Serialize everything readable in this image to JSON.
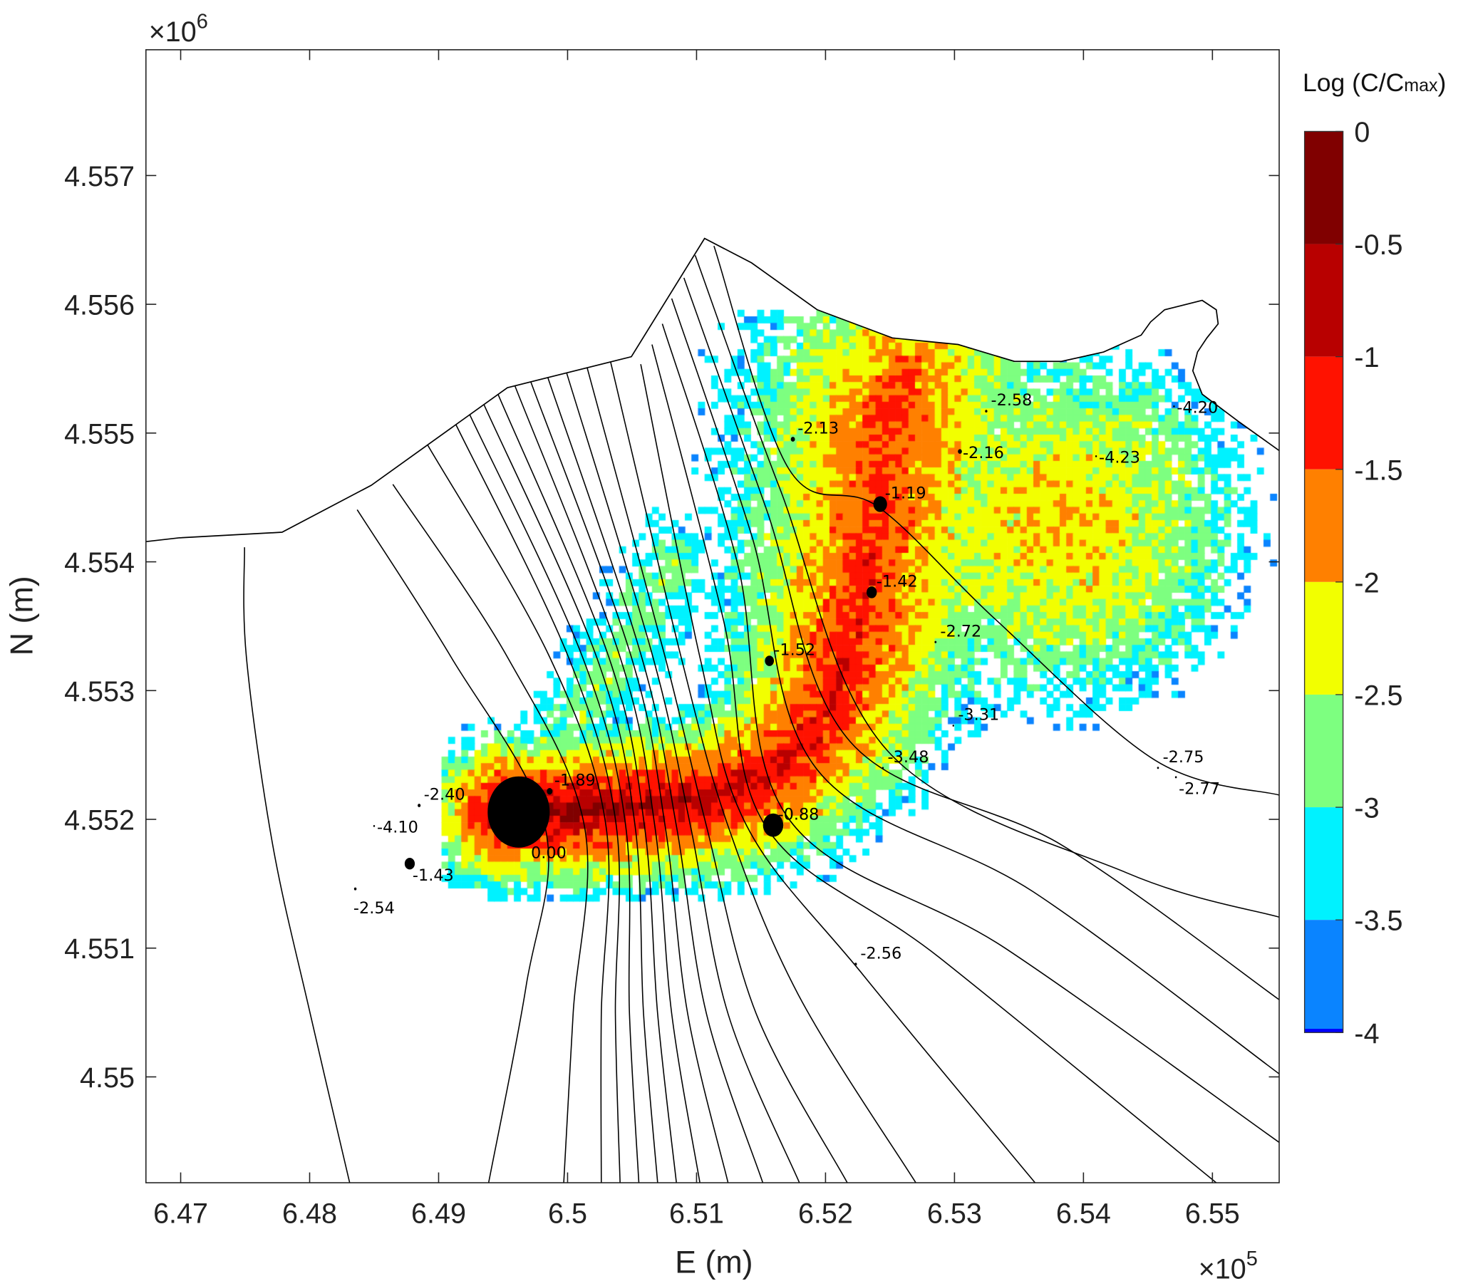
{
  "chart_data": {
    "type": "heatmap",
    "title": "",
    "xlabel": "E (m)",
    "ylabel": "N (m)",
    "x_exponent": "×10",
    "x_exponent_power": "5",
    "y_exponent": "×10",
    "y_exponent_power": "6",
    "xlim": [
      646730,
      655520
    ],
    "ylim": [
      4549180,
      4557980
    ],
    "x_ticks": [
      {
        "value": 647000,
        "label": "6.47"
      },
      {
        "value": 648000,
        "label": "6.48"
      },
      {
        "value": 649000,
        "label": "6.49"
      },
      {
        "value": 650000,
        "label": "6.5"
      },
      {
        "value": 651000,
        "label": "6.51"
      },
      {
        "value": 652000,
        "label": "6.52"
      },
      {
        "value": 653000,
        "label": "6.53"
      },
      {
        "value": 654000,
        "label": "6.54"
      },
      {
        "value": 655000,
        "label": "6.55"
      }
    ],
    "y_ticks": [
      {
        "value": 4557000,
        "label": "4.557"
      },
      {
        "value": 4556000,
        "label": "4.556"
      },
      {
        "value": 4555000,
        "label": "4.555"
      },
      {
        "value": 4554000,
        "label": "4.554"
      },
      {
        "value": 4553000,
        "label": "4.553"
      },
      {
        "value": 4552000,
        "label": "4.552"
      },
      {
        "value": 4551000,
        "label": "4.551"
      },
      {
        "value": 4550000,
        "label": "4.55"
      }
    ],
    "grid": false,
    "colorbar": {
      "title": "Log (C/C",
      "title_sub": "max",
      "title_end": ")",
      "range": [
        -4,
        0
      ],
      "ticks": [
        {
          "value": 0,
          "label": "0"
        },
        {
          "value": -0.5,
          "label": "-0.5"
        },
        {
          "value": -1,
          "label": "-1"
        },
        {
          "value": -1.5,
          "label": "-1.5"
        },
        {
          "value": -2,
          "label": "-2"
        },
        {
          "value": -2.5,
          "label": "-2.5"
        },
        {
          "value": -3,
          "label": "-3"
        },
        {
          "value": -3.5,
          "label": "-3.5"
        },
        {
          "value": -4,
          "label": "-4"
        }
      ],
      "bands": [
        {
          "from": 0,
          "to": -0.5,
          "color": "#800000"
        },
        {
          "from": -0.5,
          "to": -1,
          "color": "#b80000"
        },
        {
          "from": -1,
          "to": -1.5,
          "color": "#ff1200"
        },
        {
          "from": -1.5,
          "to": -2,
          "color": "#ff8000"
        },
        {
          "from": -2,
          "to": -2.5,
          "color": "#f2ff00"
        },
        {
          "from": -2.5,
          "to": -3,
          "color": "#7dff80"
        },
        {
          "from": -3,
          "to": -3.5,
          "color": "#00f2ff"
        },
        {
          "from": -3.5,
          "to": -4,
          "color": "#0a84ff"
        }
      ]
    },
    "samples": [
      {
        "E": 649621,
        "N": 4552057,
        "value": 0.0,
        "label": "0.00",
        "label_pos": "below-wide"
      },
      {
        "E": 649861,
        "N": 4552218,
        "value": -1.89,
        "label": "-1.89",
        "label_pos": "above-right"
      },
      {
        "E": 648849,
        "N": 4552108,
        "value": -2.4,
        "label": "-2.40",
        "label_pos": "above-right"
      },
      {
        "E": 648500,
        "N": 4551948,
        "value": -4.1,
        "label": "-4.10",
        "label_pos": "right"
      },
      {
        "E": 648776,
        "N": 4551656,
        "value": -1.43,
        "label": "-1.43",
        "label_pos": "below-right"
      },
      {
        "E": 648354,
        "N": 4551460,
        "value": -2.54,
        "label": "-2.54",
        "label_pos": "below"
      },
      {
        "E": 651594,
        "N": 4551955,
        "value": -0.88,
        "label": "-0.88",
        "label_pos": "above-right"
      },
      {
        "E": 651565,
        "N": 4553231,
        "value": -1.52,
        "label": "-1.52",
        "label_pos": "above-right"
      },
      {
        "E": 652358,
        "N": 4553763,
        "value": -1.42,
        "label": "-1.42",
        "label_pos": "above-right"
      },
      {
        "E": 652424,
        "N": 4554448,
        "value": -1.19,
        "label": "-1.19",
        "label_pos": "above-right"
      },
      {
        "E": 651747,
        "N": 4554952,
        "value": -2.13,
        "label": "-2.13",
        "label_pos": "above-right"
      },
      {
        "E": 653246,
        "N": 4555170,
        "value": -2.58,
        "label": "-2.58",
        "label_pos": "above-right"
      },
      {
        "E": 653042,
        "N": 4554857,
        "value": -2.16,
        "label": "-2.16",
        "label_pos": "right"
      },
      {
        "E": 654098,
        "N": 4554820,
        "value": -4.23,
        "label": "-4.23",
        "label_pos": "right"
      },
      {
        "E": 654702,
        "N": 4555207,
        "value": -4.2,
        "label": "-4.20",
        "label_pos": "right"
      },
      {
        "E": 652853,
        "N": 4553377,
        "value": -2.72,
        "label": "-2.72",
        "label_pos": "above-right"
      },
      {
        "E": 652991,
        "N": 4552728,
        "value": -3.31,
        "label": "-3.31",
        "label_pos": "above-right"
      },
      {
        "E": 652445,
        "N": 4552400,
        "value": -3.48,
        "label": "-3.48",
        "label_pos": "above-right"
      },
      {
        "E": 654578,
        "N": 4552400,
        "value": -2.75,
        "label": "-2.75",
        "label_pos": "above-right"
      },
      {
        "E": 654717,
        "N": 4552327,
        "value": -2.77,
        "label": "-2.77",
        "label_pos": "below-right"
      },
      {
        "E": 652234,
        "N": 4550876,
        "value": -2.56,
        "label": "-2.56",
        "label_pos": "above-right"
      }
    ]
  }
}
